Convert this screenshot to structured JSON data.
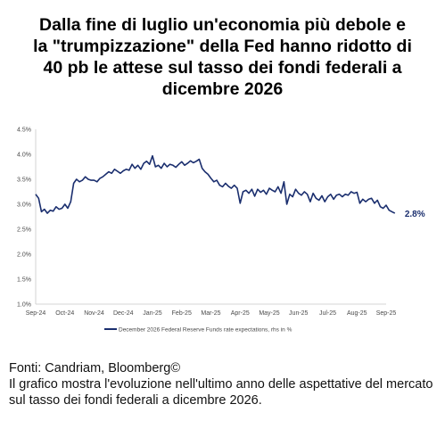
{
  "title_lines": [
    "Dalla fine di luglio un'economia più debole e",
    "la \"trumpizzazione\" della Fed hanno ridotto di",
    "40 pb le attese sul tasso dei fondi federali a",
    "dicembre 2026"
  ],
  "footer": {
    "source": "Fonti: Candriam, Bloomberg©",
    "note": "Il grafico mostra l'evoluzione nell'ultimo anno delle aspettative del mercato sul tasso dei fondi federali a dicembre 2026."
  },
  "chart_data": {
    "type": "line",
    "xlabel": "",
    "ylabel": "",
    "x_ticks": [
      "Sep-24",
      "Oct-24",
      "Nov-24",
      "Dec-24",
      "Jan-25",
      "Feb-25",
      "Mar-25",
      "Apr-25",
      "May-25",
      "Jun-25",
      "Jul-25",
      "Aug-25",
      "Sep-25"
    ],
    "y_ticks": [
      "4.5%",
      "4.0%",
      "3.5%",
      "3.0%",
      "2.5%",
      "2.0%",
      "1.5%",
      "1.0%"
    ],
    "ylim": [
      1.0,
      4.5
    ],
    "grid": false,
    "legend_position": "bottom",
    "last_value_label": "2.8%",
    "colors": {
      "line": "#1a2e6e",
      "axis": "#c8c8c8",
      "text": "#4a4a4a"
    },
    "series": [
      {
        "name": "December 2026 Federal Reserve Funds rate expectations, rhs in %",
        "x_index": [
          0,
          0.1,
          0.2,
          0.3,
          0.4,
          0.5,
          0.6,
          0.7,
          0.8,
          0.9,
          1.0,
          1.1,
          1.2,
          1.3,
          1.4,
          1.5,
          1.6,
          1.7,
          1.8,
          1.9,
          2.0,
          2.1,
          2.2,
          2.3,
          2.4,
          2.5,
          2.6,
          2.7,
          2.8,
          2.9,
          3.0,
          3.1,
          3.2,
          3.3,
          3.4,
          3.5,
          3.6,
          3.7,
          3.8,
          3.9,
          4.0,
          4.1,
          4.2,
          4.3,
          4.4,
          4.5,
          4.6,
          4.7,
          4.8,
          4.9,
          5.0,
          5.1,
          5.2,
          5.3,
          5.4,
          5.5,
          5.6,
          5.7,
          5.8,
          5.9,
          6.0,
          6.1,
          6.2,
          6.3,
          6.4,
          6.5,
          6.6,
          6.7,
          6.8,
          6.9,
          7.0,
          7.1,
          7.2,
          7.3,
          7.4,
          7.5,
          7.6,
          7.7,
          7.8,
          7.9,
          8.0,
          8.1,
          8.2,
          8.3,
          8.4,
          8.5,
          8.6,
          8.7,
          8.8,
          8.9,
          9.0,
          9.1,
          9.2,
          9.3,
          9.4,
          9.5,
          9.6,
          9.7,
          9.8,
          9.9,
          10.0,
          10.1,
          10.2,
          10.3,
          10.4,
          10.5,
          10.6,
          10.7,
          10.8,
          10.9,
          11.0,
          11.1,
          11.2,
          11.3,
          11.4,
          11.5,
          11.6,
          11.7,
          11.8,
          11.9,
          12.0,
          12.1,
          12.2,
          12.3
        ],
        "values": [
          3.2,
          3.12,
          2.85,
          2.9,
          2.82,
          2.88,
          2.86,
          2.95,
          2.9,
          2.92,
          3.0,
          2.92,
          3.05,
          3.42,
          3.5,
          3.45,
          3.48,
          3.55,
          3.5,
          3.48,
          3.48,
          3.45,
          3.52,
          3.55,
          3.6,
          3.65,
          3.62,
          3.7,
          3.66,
          3.62,
          3.67,
          3.7,
          3.68,
          3.8,
          3.72,
          3.78,
          3.7,
          3.82,
          3.86,
          3.8,
          3.97,
          3.75,
          3.78,
          3.72,
          3.82,
          3.75,
          3.8,
          3.78,
          3.74,
          3.8,
          3.85,
          3.78,
          3.82,
          3.87,
          3.83,
          3.86,
          3.9,
          3.72,
          3.65,
          3.6,
          3.52,
          3.45,
          3.48,
          3.38,
          3.35,
          3.42,
          3.36,
          3.32,
          3.38,
          3.32,
          3.02,
          3.25,
          3.28,
          3.22,
          3.3,
          3.16,
          3.3,
          3.24,
          3.28,
          3.2,
          3.32,
          3.28,
          3.25,
          3.35,
          3.22,
          3.45,
          3.0,
          3.2,
          3.15,
          3.3,
          3.22,
          3.18,
          3.25,
          3.2,
          3.05,
          3.22,
          3.12,
          3.08,
          3.17,
          3.05,
          3.15,
          3.2,
          3.1,
          3.18,
          3.2,
          3.15,
          3.2,
          3.18,
          3.25,
          3.22,
          3.24,
          3.02,
          3.1,
          3.05,
          3.1,
          3.12,
          3.02,
          3.08,
          2.95,
          2.92,
          2.98,
          2.88,
          2.85,
          2.82
        ]
      }
    ]
  }
}
